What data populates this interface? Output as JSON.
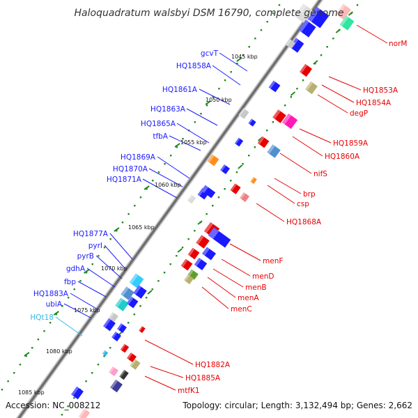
{
  "header": {
    "title": "Haloquadratum walsbyi DSM 16790, complete genome"
  },
  "footer": {
    "accession": "Accession: NC_008212",
    "summary": "Topology: circular; Length: 3,132,494 bp; Genes: 2,662"
  },
  "ruler": {
    "ticks": [
      "1045 kbp",
      "1050 kbp",
      "1055 kbp",
      "1060 kbp",
      "1065 kbp",
      "1070 kbp",
      "1075 kbp",
      "1080 kbp",
      "1085 kbp"
    ]
  },
  "genes": {
    "left_strand": [
      {
        "label": "gcvT",
        "color": "#1a1aff"
      },
      {
        "label": "HQ1858A",
        "color": "#1a1aff"
      },
      {
        "label": "HQ1861A",
        "color": "#1a1aff"
      },
      {
        "label": "HQ1863A",
        "color": "#1a1aff"
      },
      {
        "label": "HQ1865A",
        "color": "#1a1aff"
      },
      {
        "label": "tfbA",
        "color": "#1a1aff"
      },
      {
        "label": "HQ1869A",
        "color": "#1a1aff"
      },
      {
        "label": "HQ1870A",
        "color": "#1a1aff"
      },
      {
        "label": "HQ1871A",
        "color": "#1a1aff"
      },
      {
        "label": "HQ1877A",
        "color": "#1a1aff"
      },
      {
        "label": "pyrI",
        "color": "#1a1aff"
      },
      {
        "label": "pyrB",
        "color": "#1a1aff"
      },
      {
        "label": "gdhA",
        "color": "#1a1aff"
      },
      {
        "label": "fbp",
        "color": "#1a1aff"
      },
      {
        "label": "HQ1883A",
        "color": "#1a1aff"
      },
      {
        "label": "ubiA",
        "color": "#1a1aff"
      },
      {
        "label": "HQt18",
        "color": "#33b6e6"
      }
    ],
    "right_strand": [
      {
        "label": "norM",
        "color": "#e60000"
      },
      {
        "label": "HQ1853A",
        "color": "#e60000"
      },
      {
        "label": "HQ1854A",
        "color": "#e60000"
      },
      {
        "label": "degP",
        "color": "#e60000"
      },
      {
        "label": "HQ1859A",
        "color": "#e60000"
      },
      {
        "label": "HQ1860A",
        "color": "#e60000"
      },
      {
        "label": "nifS",
        "color": "#e60000"
      },
      {
        "label": "brp",
        "color": "#e60000"
      },
      {
        "label": "csp",
        "color": "#e60000"
      },
      {
        "label": "HQ1868A",
        "color": "#e60000"
      },
      {
        "label": "menF",
        "color": "#e60000"
      },
      {
        "label": "menD",
        "color": "#e60000"
      },
      {
        "label": "menB",
        "color": "#e60000"
      },
      {
        "label": "menA",
        "color": "#e60000"
      },
      {
        "label": "menC",
        "color": "#e60000"
      },
      {
        "label": "HQ1882A",
        "color": "#e60000"
      },
      {
        "label": "HQ1885A",
        "color": "#e60000"
      },
      {
        "label": "mtfK1",
        "color": "#e60000"
      }
    ]
  }
}
